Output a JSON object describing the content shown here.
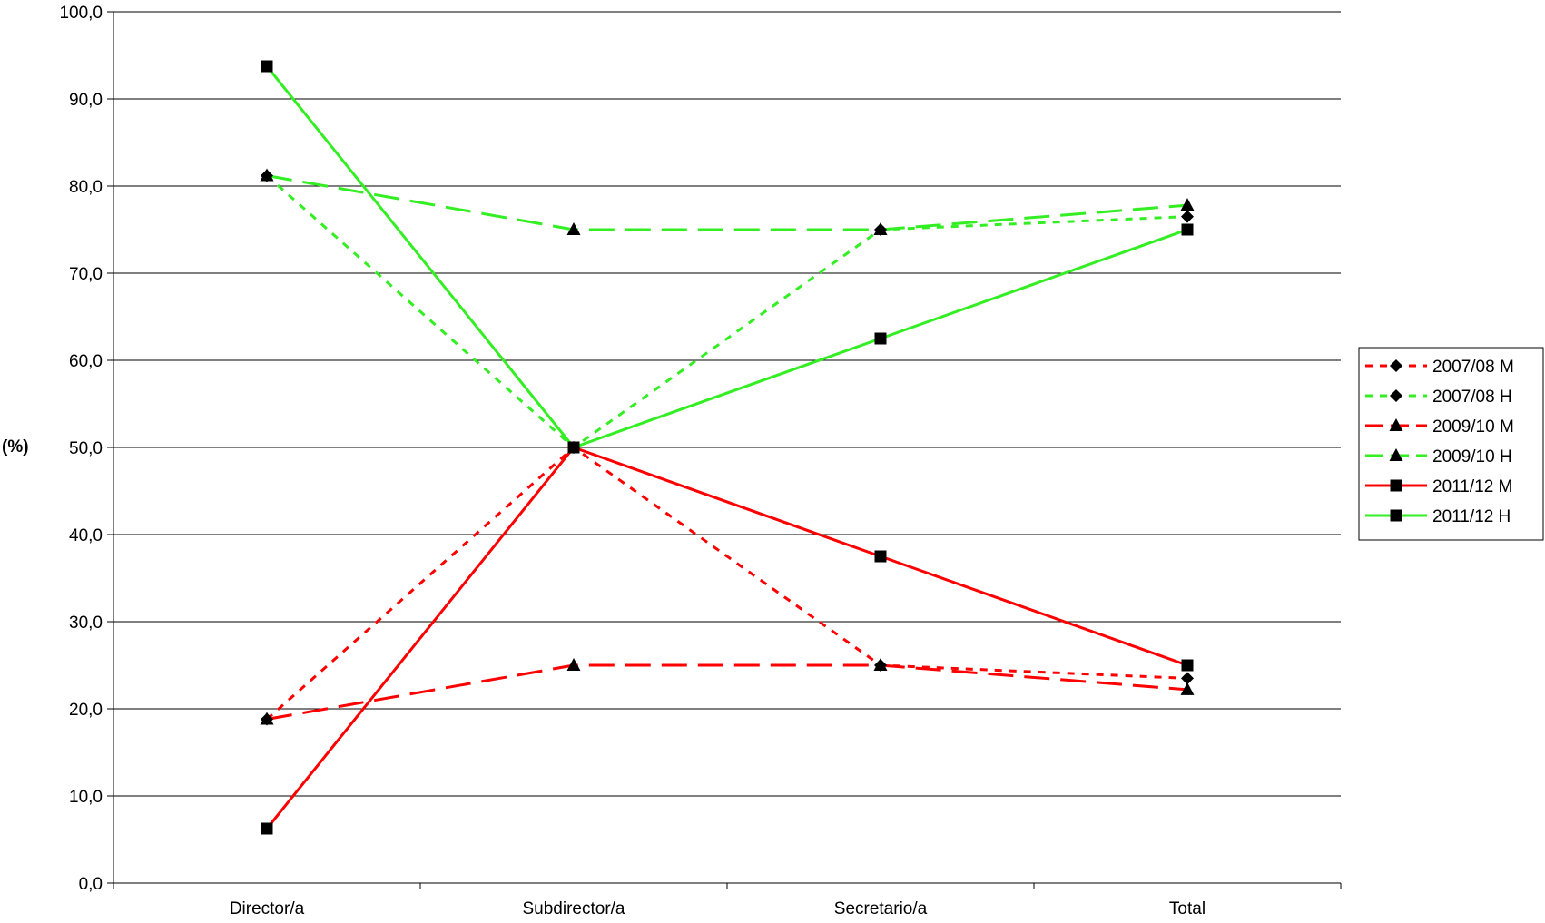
{
  "chart_data": {
    "type": "line",
    "title": "",
    "xlabel": "",
    "ylabel": "(%)",
    "categories": [
      "Director/a",
      "Subdirector/a",
      "Secretario/a",
      "Total"
    ],
    "ylim": [
      0,
      100
    ],
    "yticks": [
      "0,0",
      "10,0",
      "20,0",
      "30,0",
      "40,0",
      "50,0",
      "60,0",
      "70,0",
      "80,0",
      "90,0",
      "100,0"
    ],
    "grid": true,
    "legend_position": "right",
    "series": [
      {
        "name": "2007/08 M",
        "values": [
          18.8,
          50.0,
          25.0,
          23.5
        ],
        "color": "#ff0000",
        "dash": "dotted",
        "marker": "diamond",
        "width": 3
      },
      {
        "name": "2007/08 H",
        "values": [
          81.2,
          50.0,
          75.0,
          76.5
        ],
        "color": "#33ee22",
        "dash": "dotted",
        "marker": "diamond",
        "width": 3
      },
      {
        "name": "2009/10 M",
        "values": [
          18.8,
          25.0,
          25.0,
          22.2
        ],
        "color": "#ff0000",
        "dash": "dashed",
        "marker": "triangle",
        "width": 3
      },
      {
        "name": "2009/10 H",
        "values": [
          81.2,
          75.0,
          75.0,
          77.8
        ],
        "color": "#33ee22",
        "dash": "dashed",
        "marker": "triangle",
        "width": 3
      },
      {
        "name": "2011/12 M",
        "values": [
          6.25,
          50.0,
          37.5,
          25.0
        ],
        "color": "#ff0000",
        "dash": "solid",
        "marker": "square",
        "width": 3
      },
      {
        "name": "2011/12 H",
        "values": [
          93.75,
          50.0,
          62.5,
          75.0
        ],
        "color": "#33ee22",
        "dash": "solid",
        "marker": "square",
        "width": 3
      }
    ]
  }
}
